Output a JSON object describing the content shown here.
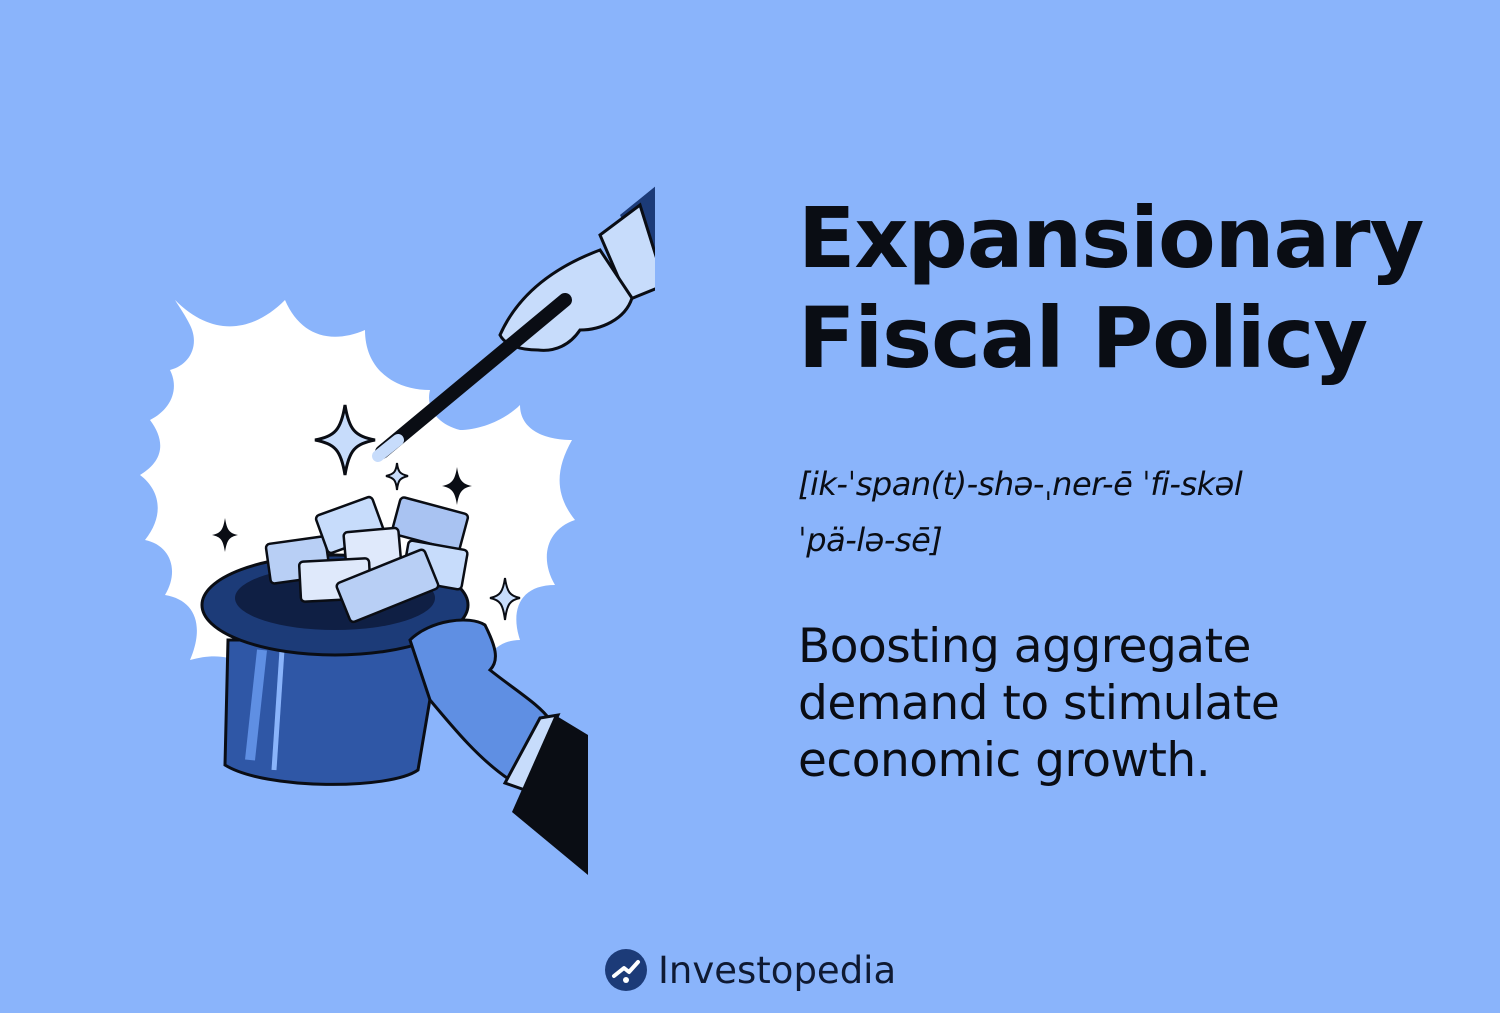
{
  "colors": {
    "background": "#8ab4fb",
    "burst": "#ffffff",
    "navy": "#1c3b78",
    "hat_blue": "#2f57a6",
    "hand_light": "#c7dcfb",
    "hand_mid": "#5f8fe3",
    "ink": "#0a0d14"
  },
  "title": {
    "line1": "Expansionary",
    "line2": "Fiscal Policy"
  },
  "pronunciation": {
    "line1": "[ik-ˈspan(t)-shə-ˌner-ē ˈfi-skəl",
    "line2": "ˈpä-lə-sē]"
  },
  "description": {
    "line1": "Boosting aggregate",
    "line2": "demand to stimulate",
    "line3": "economic growth."
  },
  "brand": {
    "name": "Investopedia",
    "icon": "investopedia-logo-icon"
  },
  "illustration": {
    "icons": [
      "starburst-icon",
      "magic-wand-icon",
      "top-hat-icon",
      "money-stack-icon",
      "sparkle-icon",
      "hand-icon"
    ]
  }
}
